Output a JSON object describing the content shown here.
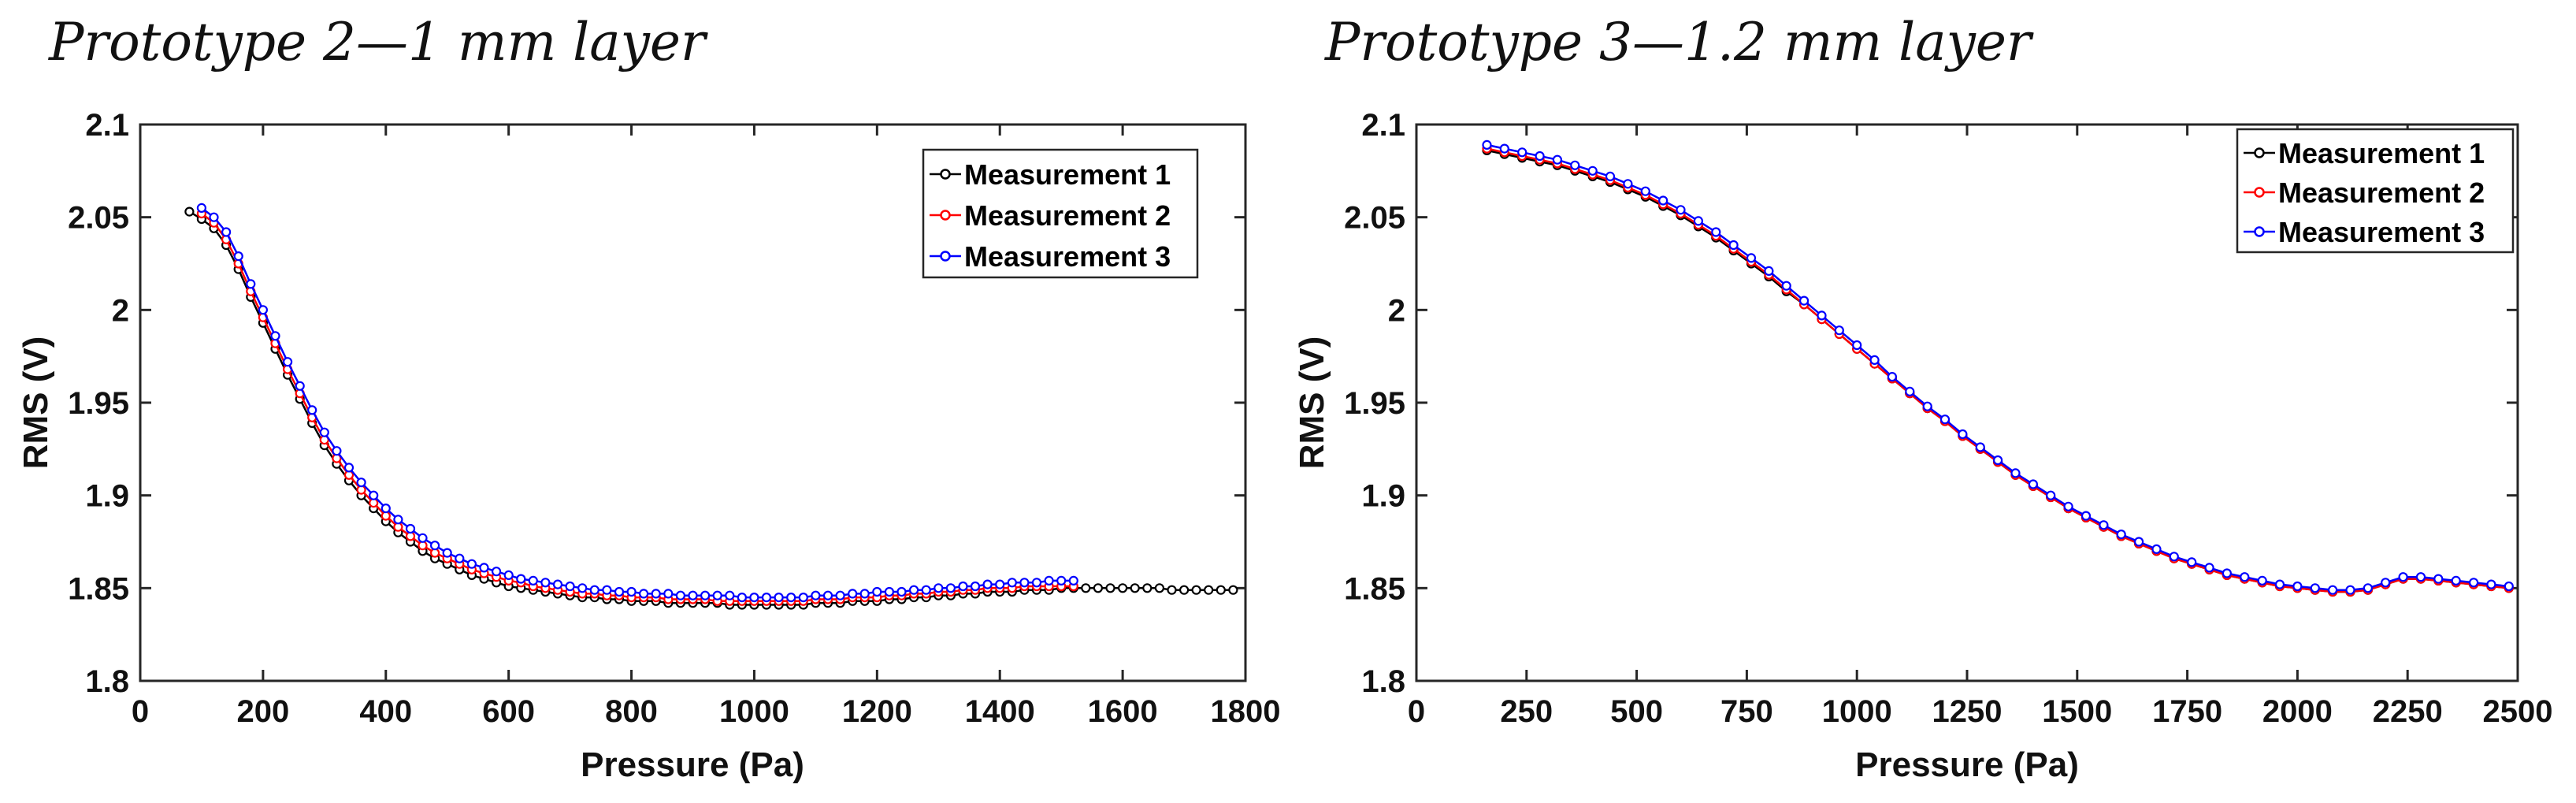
{
  "chart_data": [
    {
      "type": "line",
      "title": "Prototype 2—1 mm layer",
      "xlabel": "Pressure (Pa)",
      "ylabel": "RMS (V)",
      "xlim": [
        0,
        1800
      ],
      "ylim": [
        1.8,
        2.1
      ],
      "xticks": [
        0,
        200,
        400,
        600,
        800,
        1000,
        1200,
        1400,
        1600,
        1800
      ],
      "xtick_labels": [
        "0",
        "200",
        "400",
        "600",
        "800",
        "1000",
        "1200",
        "1400",
        "1600",
        "1800"
      ],
      "yticks": [
        1.8,
        1.85,
        1.9,
        1.95,
        2.0,
        2.05,
        2.1
      ],
      "ytick_labels": [
        "1.8",
        "1.85",
        "1.9",
        "1.95",
        "2",
        "2.05",
        "2.1"
      ],
      "legend_position": "top-right",
      "grid": false,
      "marker": "open-circle",
      "series": [
        {
          "name": "Measurement 1",
          "color": "#000000",
          "x": [
            80,
            100,
            120,
            140,
            160,
            180,
            200,
            220,
            240,
            260,
            280,
            300,
            320,
            340,
            360,
            380,
            400,
            420,
            440,
            460,
            480,
            500,
            520,
            540,
            560,
            580,
            600,
            620,
            640,
            660,
            680,
            700,
            720,
            740,
            760,
            780,
            800,
            820,
            840,
            860,
            880,
            900,
            920,
            940,
            960,
            980,
            1000,
            1020,
            1040,
            1060,
            1080,
            1100,
            1120,
            1140,
            1160,
            1180,
            1200,
            1220,
            1240,
            1260,
            1280,
            1300,
            1320,
            1340,
            1360,
            1380,
            1400,
            1420,
            1440,
            1460,
            1480,
            1500,
            1520,
            1540,
            1560,
            1580,
            1600,
            1620,
            1640,
            1660,
            1680,
            1700,
            1720,
            1740,
            1760,
            1780
          ],
          "y": [
            2.053,
            2.049,
            2.044,
            2.035,
            2.022,
            2.007,
            1.993,
            1.979,
            1.965,
            1.952,
            1.939,
            1.927,
            1.917,
            1.908,
            1.9,
            1.893,
            1.886,
            1.88,
            1.875,
            1.87,
            1.866,
            1.863,
            1.86,
            1.857,
            1.855,
            1.853,
            1.851,
            1.85,
            1.849,
            1.848,
            1.847,
            1.846,
            1.845,
            1.845,
            1.844,
            1.844,
            1.843,
            1.843,
            1.843,
            1.842,
            1.842,
            1.842,
            1.842,
            1.842,
            1.841,
            1.841,
            1.841,
            1.841,
            1.841,
            1.841,
            1.841,
            1.842,
            1.842,
            1.842,
            1.843,
            1.843,
            1.843,
            1.844,
            1.844,
            1.845,
            1.845,
            1.846,
            1.846,
            1.847,
            1.847,
            1.848,
            1.848,
            1.848,
            1.849,
            1.849,
            1.849,
            1.85,
            1.85,
            1.85,
            1.85,
            1.85,
            1.85,
            1.85,
            1.85,
            1.85,
            1.849,
            1.849,
            1.849,
            1.849,
            1.849,
            1.849
          ]
        },
        {
          "name": "Measurement 2",
          "color": "#ff0000",
          "x": [
            100,
            120,
            140,
            160,
            180,
            200,
            220,
            240,
            260,
            280,
            300,
            320,
            340,
            360,
            380,
            400,
            420,
            440,
            460,
            480,
            500,
            520,
            540,
            560,
            580,
            600,
            620,
            640,
            660,
            680,
            700,
            720,
            740,
            760,
            780,
            800,
            820,
            840,
            860,
            880,
            900,
            920,
            940,
            960,
            980,
            1000,
            1020,
            1040,
            1060,
            1080,
            1100,
            1120,
            1140,
            1160,
            1180,
            1200,
            1220,
            1240,
            1260,
            1280,
            1300,
            1320,
            1340,
            1360,
            1380,
            1400,
            1420,
            1440,
            1460,
            1480,
            1500,
            1520
          ],
          "y": [
            2.052,
            2.047,
            2.038,
            2.025,
            2.01,
            1.996,
            1.982,
            1.968,
            1.955,
            1.942,
            1.93,
            1.92,
            1.911,
            1.903,
            1.896,
            1.889,
            1.883,
            1.878,
            1.873,
            1.869,
            1.866,
            1.863,
            1.86,
            1.858,
            1.856,
            1.854,
            1.853,
            1.851,
            1.85,
            1.849,
            1.848,
            1.847,
            1.847,
            1.846,
            1.846,
            1.845,
            1.845,
            1.845,
            1.844,
            1.844,
            1.844,
            1.844,
            1.843,
            1.843,
            1.843,
            1.843,
            1.843,
            1.843,
            1.843,
            1.843,
            1.844,
            1.844,
            1.844,
            1.845,
            1.845,
            1.845,
            1.846,
            1.846,
            1.847,
            1.847,
            1.848,
            1.848,
            1.849,
            1.849,
            1.85,
            1.85,
            1.85,
            1.851,
            1.851,
            1.851,
            1.851,
            1.851
          ]
        },
        {
          "name": "Measurement 3",
          "color": "#0000ff",
          "x": [
            100,
            120,
            140,
            160,
            180,
            200,
            220,
            240,
            260,
            280,
            300,
            320,
            340,
            360,
            380,
            400,
            420,
            440,
            460,
            480,
            500,
            520,
            540,
            560,
            580,
            600,
            620,
            640,
            660,
            680,
            700,
            720,
            740,
            760,
            780,
            800,
            820,
            840,
            860,
            880,
            900,
            920,
            940,
            960,
            980,
            1000,
            1020,
            1040,
            1060,
            1080,
            1100,
            1120,
            1140,
            1160,
            1180,
            1200,
            1220,
            1240,
            1260,
            1280,
            1300,
            1320,
            1340,
            1360,
            1380,
            1400,
            1420,
            1440,
            1460,
            1480,
            1500,
            1520
          ],
          "y": [
            2.055,
            2.05,
            2.042,
            2.029,
            2.014,
            2.0,
            1.986,
            1.972,
            1.959,
            1.946,
            1.934,
            1.924,
            1.915,
            1.907,
            1.9,
            1.893,
            1.887,
            1.882,
            1.877,
            1.873,
            1.869,
            1.866,
            1.863,
            1.861,
            1.859,
            1.857,
            1.855,
            1.854,
            1.853,
            1.852,
            1.851,
            1.85,
            1.849,
            1.849,
            1.848,
            1.848,
            1.847,
            1.847,
            1.847,
            1.846,
            1.846,
            1.846,
            1.846,
            1.846,
            1.845,
            1.845,
            1.845,
            1.845,
            1.845,
            1.845,
            1.846,
            1.846,
            1.846,
            1.847,
            1.847,
            1.848,
            1.848,
            1.848,
            1.849,
            1.849,
            1.85,
            1.85,
            1.851,
            1.851,
            1.852,
            1.852,
            1.853,
            1.853,
            1.853,
            1.854,
            1.854,
            1.854
          ]
        }
      ]
    },
    {
      "type": "line",
      "title": "Prototype 3—1.2 mm layer",
      "xlabel": "Pressure (Pa)",
      "ylabel": "RMS (V)",
      "xlim": [
        0,
        2500
      ],
      "ylim": [
        1.8,
        2.1
      ],
      "xticks": [
        0,
        250,
        500,
        750,
        1000,
        1250,
        1500,
        1750,
        2000,
        2250,
        2500
      ],
      "xtick_labels": [
        "0",
        "250",
        "500",
        "750",
        "1000",
        "1250",
        "1500",
        "1750",
        "2000",
        "2250",
        "2500"
      ],
      "yticks": [
        1.8,
        1.85,
        1.9,
        1.95,
        2.0,
        2.05,
        2.1
      ],
      "ytick_labels": [
        "1.8",
        "1.85",
        "1.9",
        "1.95",
        "2",
        "2.05",
        "2.1"
      ],
      "legend_position": "top-right",
      "grid": false,
      "marker": "open-circle",
      "series": [
        {
          "name": "Measurement 1",
          "color": "#000000",
          "x": [
            160,
            200,
            240,
            280,
            320,
            360,
            400,
            440,
            480,
            520,
            560,
            600,
            640,
            680,
            720,
            760,
            800,
            840,
            880,
            920,
            960,
            1000,
            1040,
            1080,
            1120,
            1160,
            1200,
            1240,
            1280,
            1320,
            1360,
            1400,
            1440,
            1480,
            1520,
            1560,
            1600,
            1640,
            1680,
            1720,
            1760,
            1800,
            1840,
            1880,
            1920,
            1960,
            2000,
            2040,
            2080,
            2120,
            2160,
            2200,
            2240,
            2280,
            2320,
            2360,
            2400,
            2440,
            2480
          ],
          "y": [
            2.086,
            2.084,
            2.082,
            2.08,
            2.078,
            2.075,
            2.072,
            2.069,
            2.065,
            2.061,
            2.056,
            2.051,
            2.045,
            2.039,
            2.032,
            2.025,
            2.018,
            2.01,
            2.003,
            1.995,
            1.987,
            1.979,
            1.971,
            1.963,
            1.955,
            1.947,
            1.94,
            1.932,
            1.925,
            1.918,
            1.911,
            1.905,
            1.899,
            1.893,
            1.888,
            1.883,
            1.878,
            1.874,
            1.87,
            1.866,
            1.863,
            1.86,
            1.857,
            1.855,
            1.853,
            1.851,
            1.85,
            1.849,
            1.848,
            1.848,
            1.849,
            1.852,
            1.855,
            1.855,
            1.854,
            1.853,
            1.852,
            1.851,
            1.85
          ]
        },
        {
          "name": "Measurement 2",
          "color": "#ff0000",
          "x": [
            160,
            200,
            240,
            280,
            320,
            360,
            400,
            440,
            480,
            520,
            560,
            600,
            640,
            680,
            720,
            760,
            800,
            840,
            880,
            920,
            960,
            1000,
            1040,
            1080,
            1120,
            1160,
            1200,
            1240,
            1280,
            1320,
            1360,
            1400,
            1440,
            1480,
            1520,
            1560,
            1600,
            1640,
            1680,
            1720,
            1760,
            1800,
            1840,
            1880,
            1920,
            1960,
            2000,
            2040,
            2080,
            2120,
            2160,
            2200,
            2240,
            2280,
            2320,
            2360,
            2400,
            2440,
            2480
          ],
          "y": [
            2.087,
            2.085,
            2.083,
            2.081,
            2.079,
            2.076,
            2.073,
            2.07,
            2.066,
            2.062,
            2.057,
            2.052,
            2.046,
            2.04,
            2.033,
            2.026,
            2.019,
            2.011,
            2.003,
            1.995,
            1.987,
            1.979,
            1.971,
            1.963,
            1.955,
            1.947,
            1.94,
            1.932,
            1.925,
            1.918,
            1.911,
            1.905,
            1.899,
            1.893,
            1.888,
            1.883,
            1.878,
            1.874,
            1.87,
            1.866,
            1.863,
            1.86,
            1.857,
            1.855,
            1.853,
            1.851,
            1.85,
            1.849,
            1.848,
            1.848,
            1.849,
            1.852,
            1.855,
            1.855,
            1.854,
            1.853,
            1.852,
            1.851,
            1.85
          ]
        },
        {
          "name": "Measurement 3",
          "color": "#0000ff",
          "x": [
            160,
            200,
            240,
            280,
            320,
            360,
            400,
            440,
            480,
            520,
            560,
            600,
            640,
            680,
            720,
            760,
            800,
            840,
            880,
            920,
            960,
            1000,
            1040,
            1080,
            1120,
            1160,
            1200,
            1240,
            1280,
            1320,
            1360,
            1400,
            1440,
            1480,
            1520,
            1560,
            1600,
            1640,
            1680,
            1720,
            1760,
            1800,
            1840,
            1880,
            1920,
            1960,
            2000,
            2040,
            2080,
            2120,
            2160,
            2200,
            2240,
            2280,
            2320,
            2360,
            2400,
            2440,
            2480
          ],
          "y": [
            2.089,
            2.087,
            2.085,
            2.083,
            2.081,
            2.078,
            2.075,
            2.072,
            2.068,
            2.064,
            2.059,
            2.054,
            2.048,
            2.042,
            2.035,
            2.028,
            2.021,
            2.013,
            2.005,
            1.997,
            1.989,
            1.981,
            1.973,
            1.964,
            1.956,
            1.948,
            1.941,
            1.933,
            1.926,
            1.919,
            1.912,
            1.906,
            1.9,
            1.894,
            1.889,
            1.884,
            1.879,
            1.875,
            1.871,
            1.867,
            1.864,
            1.861,
            1.858,
            1.856,
            1.854,
            1.852,
            1.851,
            1.85,
            1.849,
            1.849,
            1.85,
            1.853,
            1.856,
            1.856,
            1.855,
            1.854,
            1.853,
            1.852,
            1.851
          ]
        }
      ]
    }
  ]
}
